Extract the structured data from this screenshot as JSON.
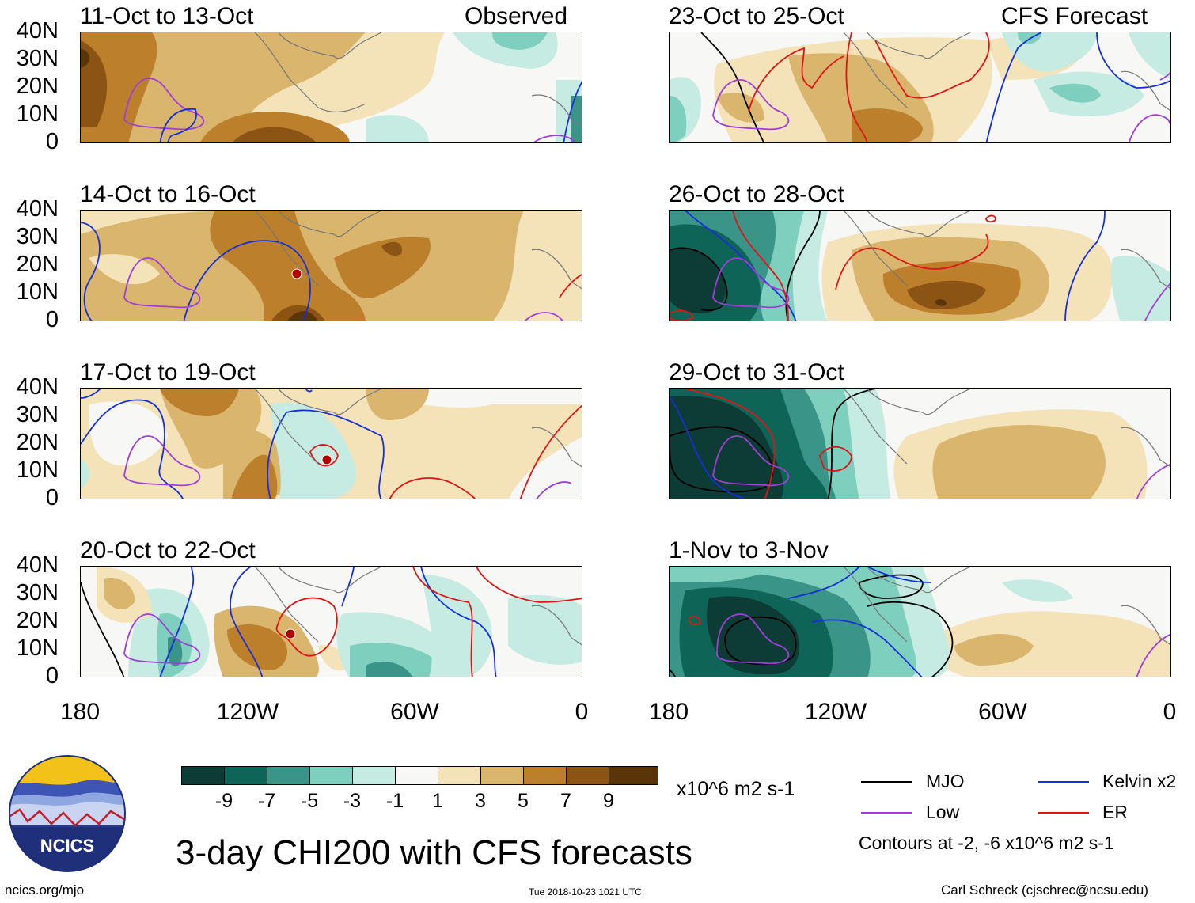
{
  "panels": [
    {
      "title": "11-Oct to 13-Oct",
      "tag": "Observed"
    },
    {
      "title": "23-Oct to 25-Oct",
      "tag": "CFS Forecast"
    },
    {
      "title": "14-Oct to 16-Oct",
      "tag": ""
    },
    {
      "title": "26-Oct to 28-Oct",
      "tag": ""
    },
    {
      "title": "17-Oct to 19-Oct",
      "tag": ""
    },
    {
      "title": "29-Oct to 31-Oct",
      "tag": ""
    },
    {
      "title": "20-Oct to 22-Oct",
      "tag": ""
    },
    {
      "title": "1-Nov to 3-Nov",
      "tag": ""
    }
  ],
  "lat_labels": [
    "40N",
    "30N",
    "20N",
    "10N",
    "0"
  ],
  "lon_labels": [
    "180",
    "120W",
    "60W",
    "0"
  ],
  "colorbar": {
    "labels": [
      "-9",
      "-7",
      "-5",
      "-3",
      "-1",
      "1",
      "3",
      "5",
      "7",
      "9"
    ],
    "colors": [
      "#0d3b35",
      "#0f6458",
      "#3a9588",
      "#7fcfbf",
      "#c5ebe2",
      "#f7f7f5",
      "#f4e3b9",
      "#d9b56e",
      "#bc7f2c",
      "#8c5414",
      "#5a3508"
    ],
    "units": "x10^6 m2 s-1"
  },
  "legend": {
    "items": [
      {
        "label": "MJO",
        "color": "#000000"
      },
      {
        "label": "Kelvin x2",
        "color": "#1530d6"
      },
      {
        "label": "Low",
        "color": "#9f3fd6"
      },
      {
        "label": "ER",
        "color": "#e01515"
      }
    ],
    "contours_note": "Contours at -2, -6 x10^6 m2 s-1"
  },
  "logo_text": "NCICS",
  "main_title": "3-day CHI200 with CFS forecasts",
  "footer": {
    "url": "ncics.org/mjo",
    "timestamp": "Tue 2018-10-23 1021 UTC",
    "author": "Carl Schreck (cjschrec@ncsu.edu)"
  }
}
